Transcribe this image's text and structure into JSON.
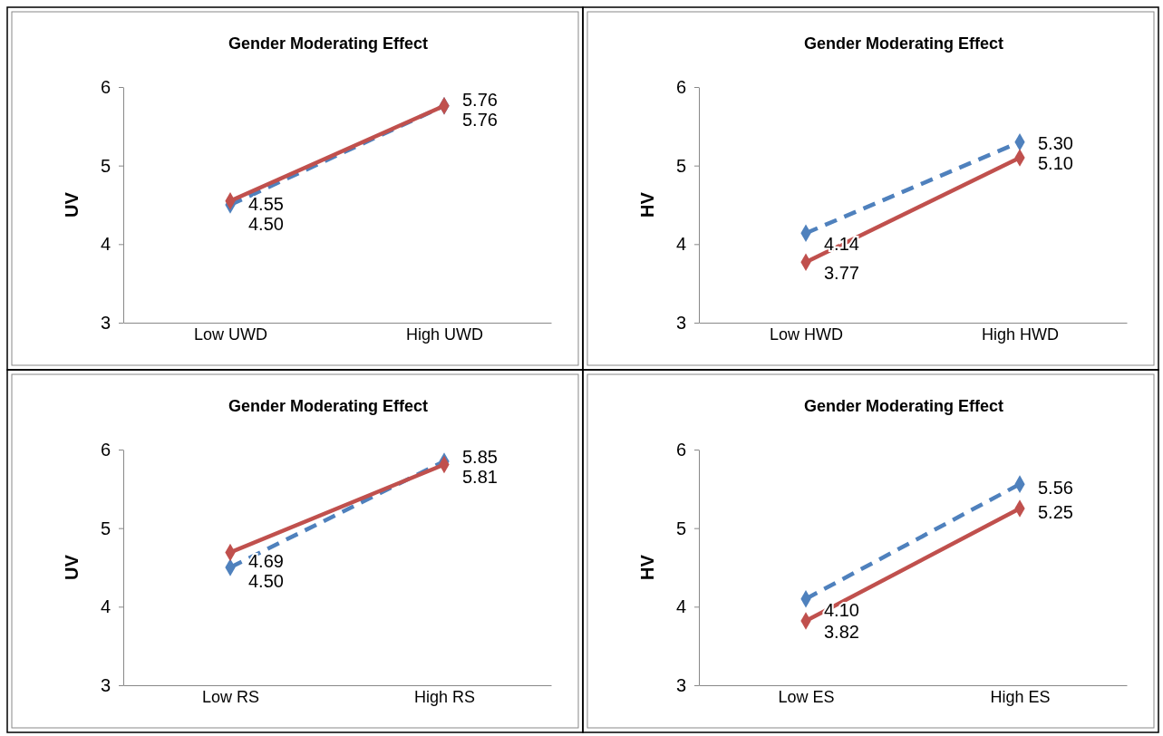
{
  "chart_data": [
    {
      "type": "line",
      "title": "Gender Moderating Effect",
      "ylabel": "UV",
      "categories": [
        "Low UWD",
        "High UWD"
      ],
      "ylim": [
        3,
        6
      ],
      "yticks": [
        3,
        4,
        5,
        6
      ],
      "grid": false,
      "marker": "diamond",
      "series": [
        {
          "color": "#4f81bd",
          "line_style": "dashed",
          "values": [
            4.5,
            5.76
          ],
          "value_labels": [
            "4.50",
            "5.76"
          ]
        },
        {
          "color": "#c0504d",
          "line_style": "solid",
          "values": [
            4.55,
            5.76
          ],
          "value_labels": [
            "4.55",
            "5.76"
          ]
        }
      ]
    },
    {
      "type": "line",
      "title": "Gender Moderating Effect",
      "ylabel": "HV",
      "categories": [
        "Low HWD",
        "High HWD"
      ],
      "ylim": [
        3,
        6
      ],
      "yticks": [
        3,
        4,
        5,
        6
      ],
      "grid": false,
      "marker": "diamond",
      "series": [
        {
          "color": "#4f81bd",
          "line_style": "dashed",
          "values": [
            4.14,
            5.3
          ],
          "value_labels": [
            "4.14",
            "5.30"
          ]
        },
        {
          "color": "#c0504d",
          "line_style": "solid",
          "values": [
            3.77,
            5.1
          ],
          "value_labels": [
            "3.77",
            "5.10"
          ]
        }
      ]
    },
    {
      "type": "line",
      "title": "Gender Moderating Effect",
      "ylabel": "UV",
      "categories": [
        "Low RS",
        "High RS"
      ],
      "ylim": [
        3,
        6
      ],
      "yticks": [
        3,
        4,
        5,
        6
      ],
      "grid": false,
      "marker": "diamond",
      "series": [
        {
          "color": "#4f81bd",
          "line_style": "dashed",
          "values": [
            4.5,
            5.85
          ],
          "value_labels": [
            "4.50",
            "5.85"
          ]
        },
        {
          "color": "#c0504d",
          "line_style": "solid",
          "values": [
            4.69,
            5.81
          ],
          "value_labels": [
            "4.69",
            "5.81"
          ]
        }
      ]
    },
    {
      "type": "line",
      "title": "Gender Moderating Effect",
      "ylabel": "HV",
      "categories": [
        "Low ES",
        "High ES"
      ],
      "ylim": [
        3,
        6
      ],
      "yticks": [
        3,
        4,
        5,
        6
      ],
      "grid": false,
      "marker": "diamond",
      "series": [
        {
          "color": "#4f81bd",
          "line_style": "dashed",
          "values": [
            4.1,
            5.56
          ],
          "value_labels": [
            "4.10",
            "5.56"
          ]
        },
        {
          "color": "#c0504d",
          "line_style": "solid",
          "values": [
            3.82,
            5.25
          ],
          "value_labels": [
            "3.82",
            "5.25"
          ]
        }
      ]
    }
  ]
}
